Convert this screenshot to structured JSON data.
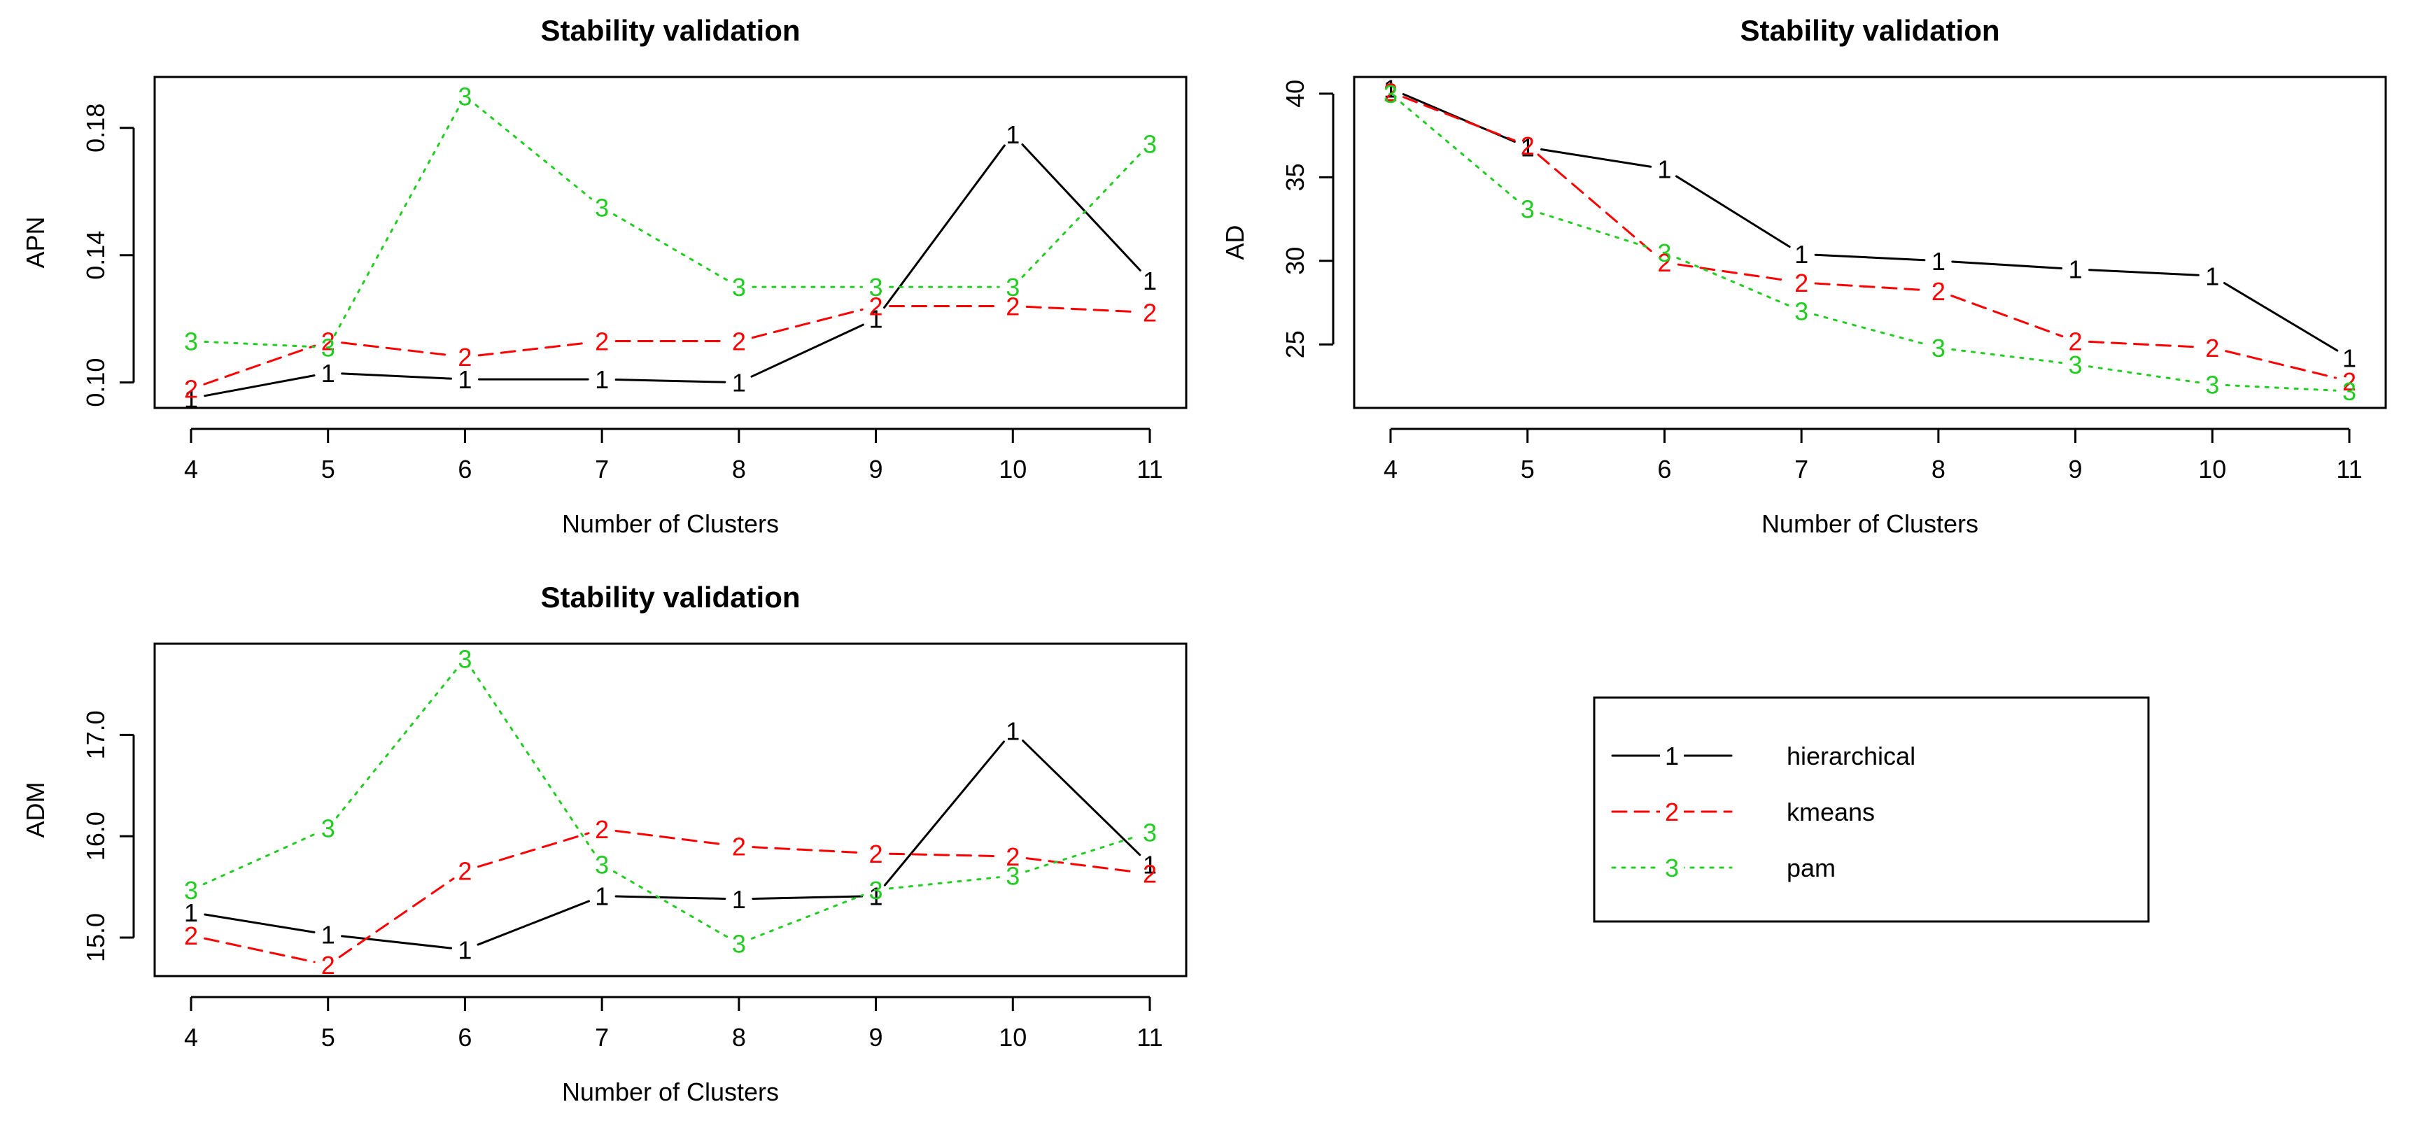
{
  "chart_data": [
    {
      "type": "line",
      "title": "Stability validation",
      "xlabel": "Number of Clusters",
      "ylabel": "APN",
      "x": [
        4,
        5,
        6,
        7,
        8,
        9,
        10,
        11
      ],
      "xlim": [
        4,
        11
      ],
      "ylim": [
        0.092,
        0.196
      ],
      "yticks": [
        0.1,
        0.14,
        0.18
      ],
      "ytick_labels": [
        "0.10",
        "0.14",
        "0.18"
      ],
      "series": [
        {
          "name": "hierarchical",
          "marker": "1",
          "color": "#000000",
          "values": [
            0.095,
            0.103,
            0.101,
            0.101,
            0.1,
            0.12,
            0.178,
            0.132
          ]
        },
        {
          "name": "kmeans",
          "marker": "2",
          "color": "#ff0000",
          "values": [
            0.098,
            0.113,
            0.108,
            0.113,
            0.113,
            0.124,
            0.124,
            0.122
          ]
        },
        {
          "name": "pam",
          "marker": "3",
          "color": "#22cc22",
          "values": [
            0.113,
            0.111,
            0.19,
            0.155,
            0.13,
            0.13,
            0.13,
            0.175
          ]
        }
      ]
    },
    {
      "type": "line",
      "title": "Stability validation",
      "xlabel": "Number of Clusters",
      "ylabel": "AD",
      "x": [
        4,
        5,
        6,
        7,
        8,
        9,
        10,
        11
      ],
      "xlim": [
        4,
        11
      ],
      "ylim": [
        21.2,
        41.0
      ],
      "yticks": [
        25,
        30,
        35,
        40
      ],
      "ytick_labels": [
        "25",
        "30",
        "35",
        "40"
      ],
      "series": [
        {
          "name": "hierarchical",
          "marker": "1",
          "color": "#000000",
          "values": [
            40.3,
            36.8,
            35.5,
            30.4,
            30.0,
            29.5,
            29.1,
            24.2
          ]
        },
        {
          "name": "kmeans",
          "marker": "2",
          "color": "#ff0000",
          "values": [
            40.1,
            36.9,
            29.9,
            28.7,
            28.2,
            25.2,
            24.8,
            22.8
          ]
        },
        {
          "name": "pam",
          "marker": "3",
          "color": "#22cc22",
          "values": [
            40.0,
            33.1,
            30.5,
            27.0,
            24.8,
            23.8,
            22.6,
            22.2
          ]
        }
      ]
    },
    {
      "type": "line",
      "title": "Stability validation",
      "xlabel": "Number of Clusters",
      "ylabel": "ADM",
      "x": [
        4,
        5,
        6,
        7,
        8,
        9,
        10,
        11
      ],
      "xlim": [
        4,
        11
      ],
      "ylim": [
        14.62,
        17.9
      ],
      "yticks": [
        15.0,
        16.0,
        17.0
      ],
      "ytick_labels": [
        "15.0",
        "16.0",
        "17.0"
      ],
      "series": [
        {
          "name": "hierarchical",
          "marker": "1",
          "color": "#000000",
          "values": [
            15.25,
            15.03,
            14.88,
            15.41,
            15.38,
            15.41,
            17.04,
            15.72
          ]
        },
        {
          "name": "kmeans",
          "marker": "2",
          "color": "#ff0000",
          "values": [
            15.02,
            14.73,
            15.66,
            16.07,
            15.9,
            15.83,
            15.8,
            15.63
          ]
        },
        {
          "name": "pam",
          "marker": "3",
          "color": "#22cc22",
          "values": [
            15.47,
            16.08,
            17.75,
            15.72,
            14.94,
            15.47,
            15.61,
            16.04
          ]
        }
      ]
    }
  ],
  "legend": {
    "items": [
      {
        "label": "hierarchical",
        "marker": "1",
        "color": "#000000",
        "dash": "solid"
      },
      {
        "label": "kmeans",
        "marker": "2",
        "color": "#ff0000",
        "dash": "dashed"
      },
      {
        "label": "pam",
        "marker": "3",
        "color": "#22cc22",
        "dash": "dotted"
      }
    ]
  }
}
